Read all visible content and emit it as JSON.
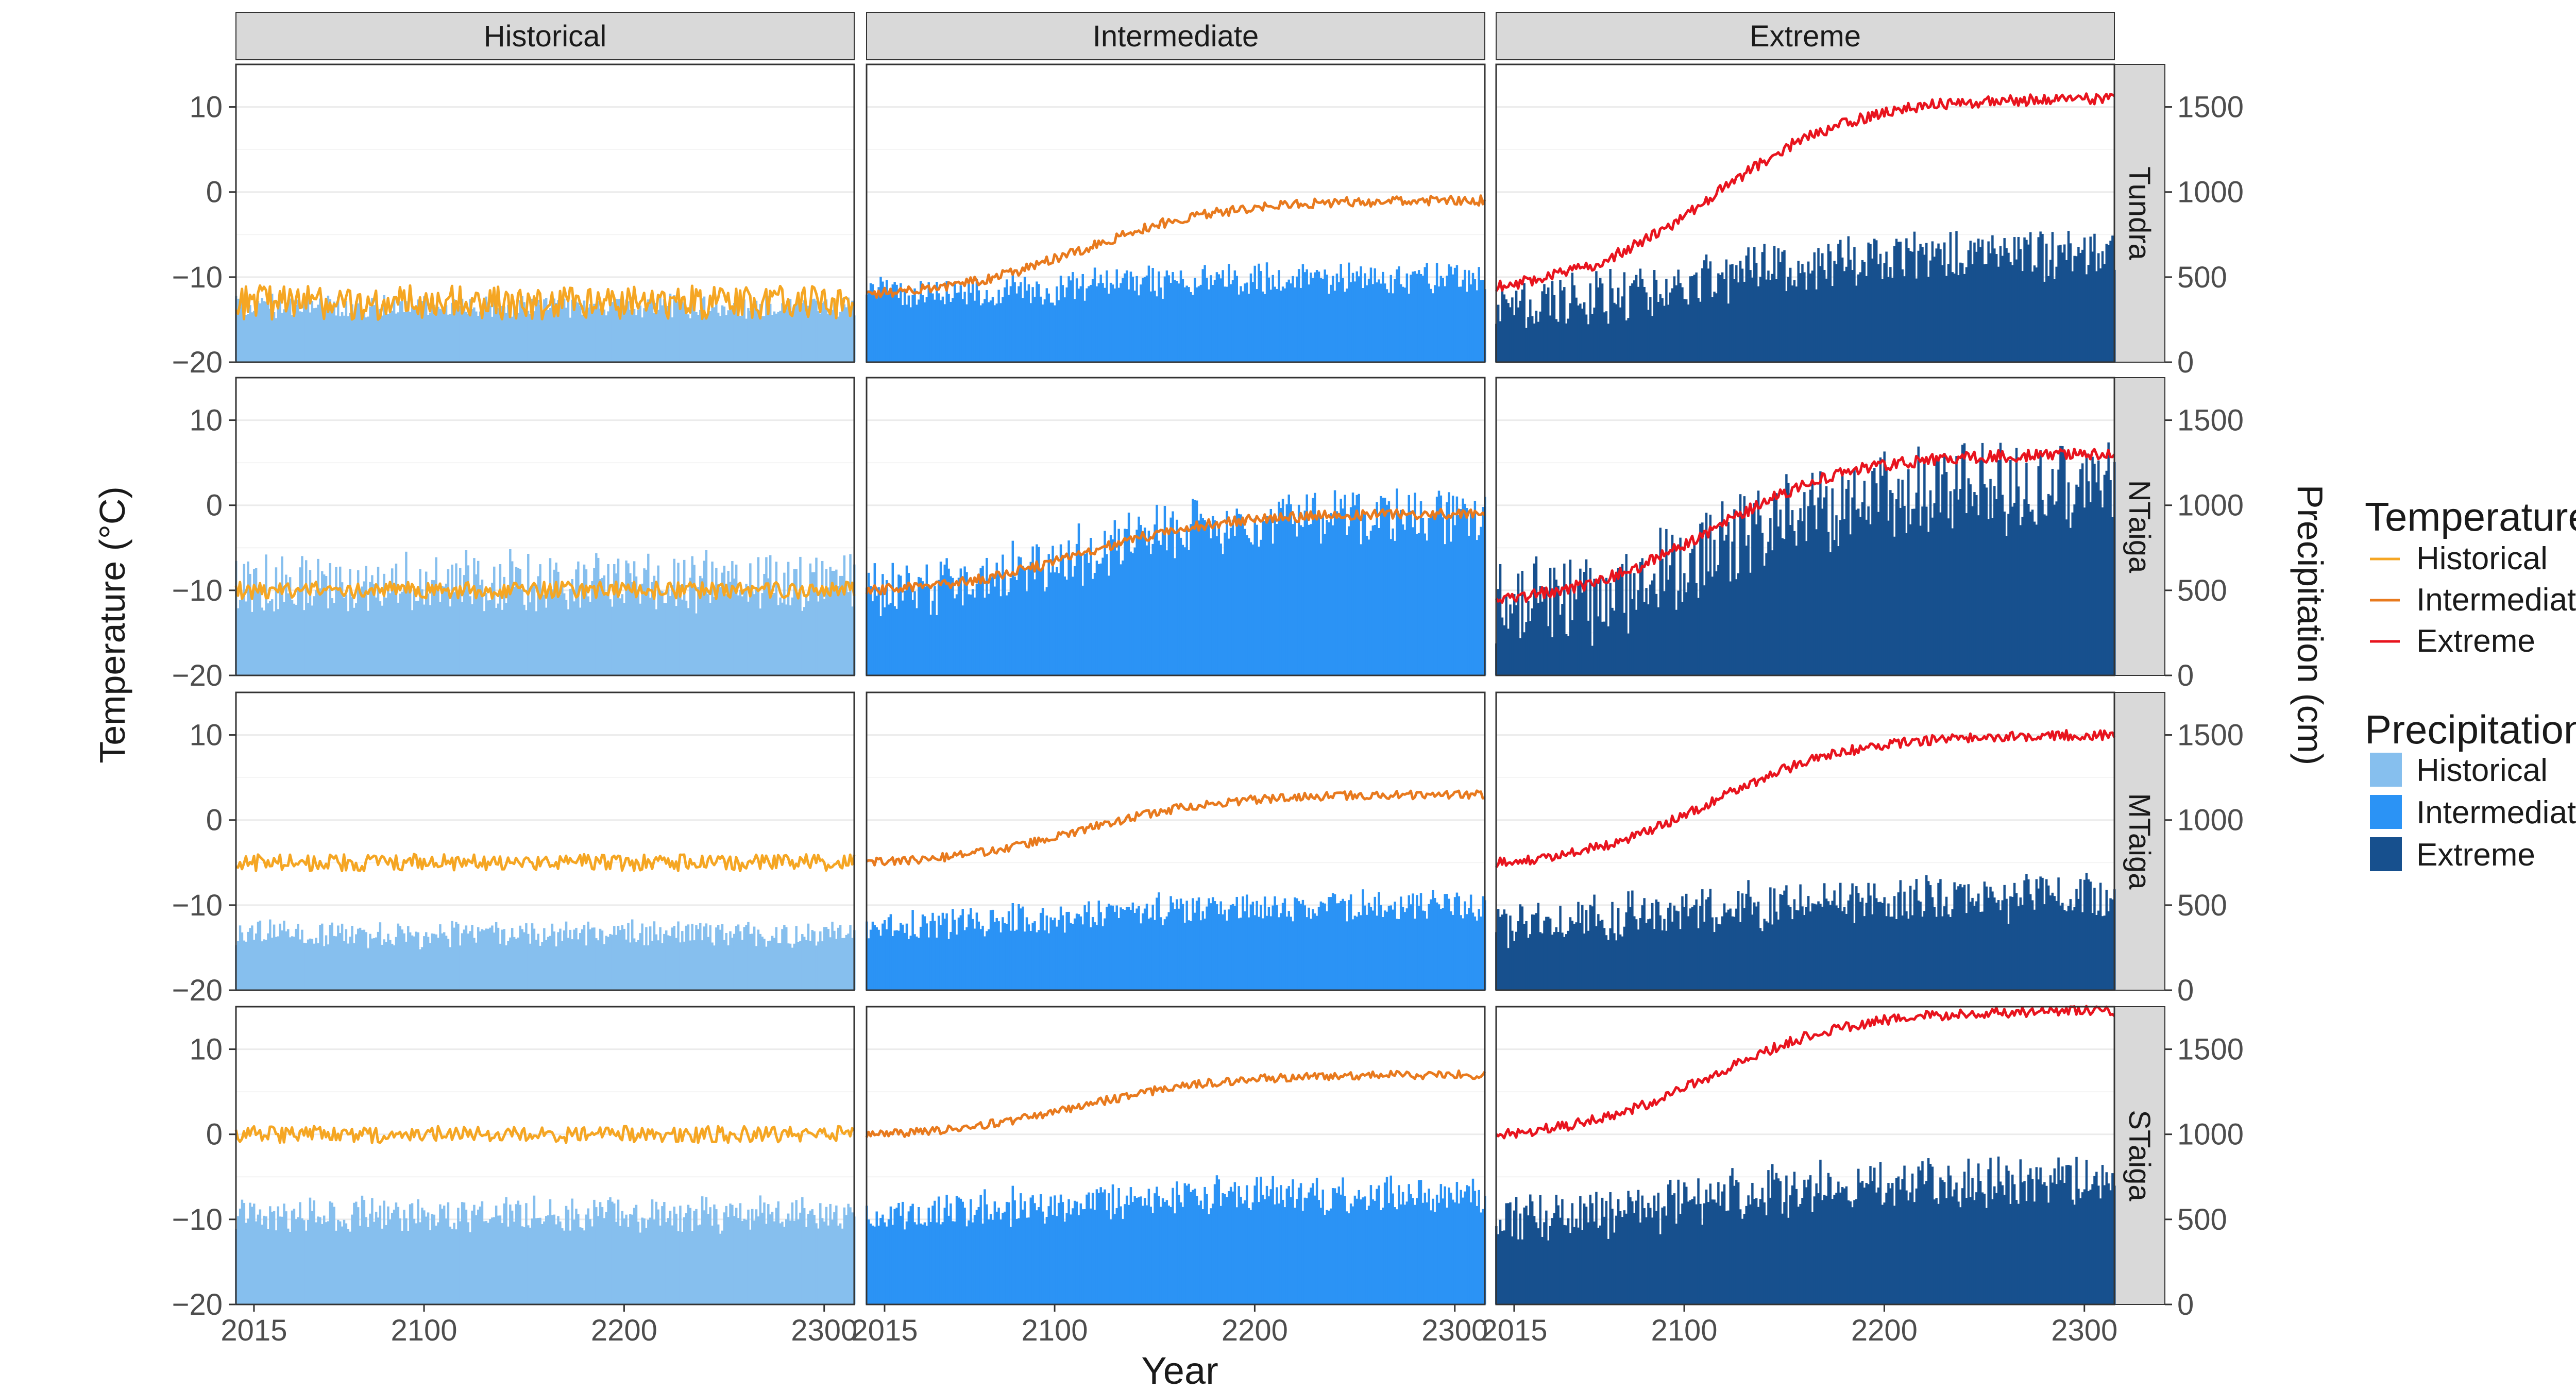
{
  "chart_data": {
    "type": "faceted bar + line (dual axis)",
    "columns": [
      "Historical",
      "Intermediate",
      "Extreme"
    ],
    "rows": [
      "Tundra",
      "NTaiga",
      "MTaiga",
      "STaiga"
    ],
    "xlabel": "Year",
    "ylabel_left": "Temperature (°C)",
    "ylabel_right": "Precipitation (cm)",
    "x_ticks": [
      "2015",
      "2100",
      "2200",
      "2300"
    ],
    "x_tick_values": [
      2015,
      2100,
      2200,
      2300
    ],
    "xlim": [
      2006,
      2315
    ],
    "y_left_ticks": [
      "10",
      "0",
      "−10",
      "−20"
    ],
    "y_left_tick_values": [
      10,
      0,
      -10,
      -20
    ],
    "ylim_left": [
      -20,
      15
    ],
    "y_right_ticks": [
      "1500",
      "1000",
      "500",
      "0"
    ],
    "y_right_tick_values": [
      1500,
      1000,
      500,
      0
    ],
    "ylim_right": [
      0,
      1750
    ],
    "grid": true,
    "legend_position": "right",
    "legend": {
      "temperature_title": "Temperature",
      "precipitation_title": "Precipitation",
      "items": [
        "Historical",
        "Intermediate",
        "Extreme"
      ]
    },
    "colors": {
      "temperature": {
        "Historical": "#F5A623",
        "Intermediate": "#E87A1E",
        "Extreme": "#E8141E"
      },
      "precipitation": {
        "Historical": "#86BFEE",
        "Intermediate": "#2B93F5",
        "Extreme": "#17508E"
      }
    },
    "series_summary": {
      "Tundra": {
        "Historical": {
          "temp_start": -13,
          "temp_end": -13,
          "temp_noise": 2.0,
          "precip_start": 330,
          "precip_end": 330,
          "precip_noise": 80
        },
        "Intermediate": {
          "temp_start": -12,
          "temp_end": -1,
          "temp_noise": 0.6,
          "precip_start": 400,
          "precip_end": 500,
          "precip_noise": 110
        },
        "Extreme": {
          "temp_start": -11,
          "temp_end": 11,
          "temp_noise": 0.7,
          "precip_start": 350,
          "precip_end": 650,
          "precip_noise": 180
        }
      },
      "NTaiga": {
        "Historical": {
          "temp_start": -10,
          "temp_end": -10,
          "temp_noise": 1.0,
          "precip_start": 550,
          "precip_end": 550,
          "precip_noise": 200
        },
        "Intermediate": {
          "temp_start": -10,
          "temp_end": -1,
          "temp_noise": 0.6,
          "precip_start": 500,
          "precip_end": 950,
          "precip_noise": 200
        },
        "Extreme": {
          "temp_start": -11,
          "temp_end": 6,
          "temp_noise": 0.7,
          "precip_start": 400,
          "precip_end": 1100,
          "precip_noise": 320
        }
      },
      "MTaiga": {
        "Historical": {
          "temp_start": -5,
          "temp_end": -5,
          "temp_noise": 1.0,
          "precip_start": 330,
          "precip_end": 330,
          "precip_noise": 90
        },
        "Intermediate": {
          "temp_start": -5,
          "temp_end": 3,
          "temp_noise": 0.5,
          "precip_start": 380,
          "precip_end": 500,
          "precip_noise": 110
        },
        "Extreme": {
          "temp_start": -5,
          "temp_end": 10,
          "temp_noise": 0.6,
          "precip_start": 400,
          "precip_end": 550,
          "precip_noise": 160
        }
      },
      "STaiga": {
        "Historical": {
          "temp_start": 0,
          "temp_end": 0,
          "temp_noise": 1.0,
          "precip_start": 530,
          "precip_end": 530,
          "precip_noise": 120
        },
        "Intermediate": {
          "temp_start": 0,
          "temp_end": 7,
          "temp_noise": 0.5,
          "precip_start": 550,
          "precip_end": 650,
          "precip_noise": 130
        },
        "Extreme": {
          "temp_start": 0,
          "temp_end": 14.5,
          "temp_noise": 0.6,
          "precip_start": 520,
          "precip_end": 720,
          "precip_noise": 180
        }
      }
    }
  }
}
